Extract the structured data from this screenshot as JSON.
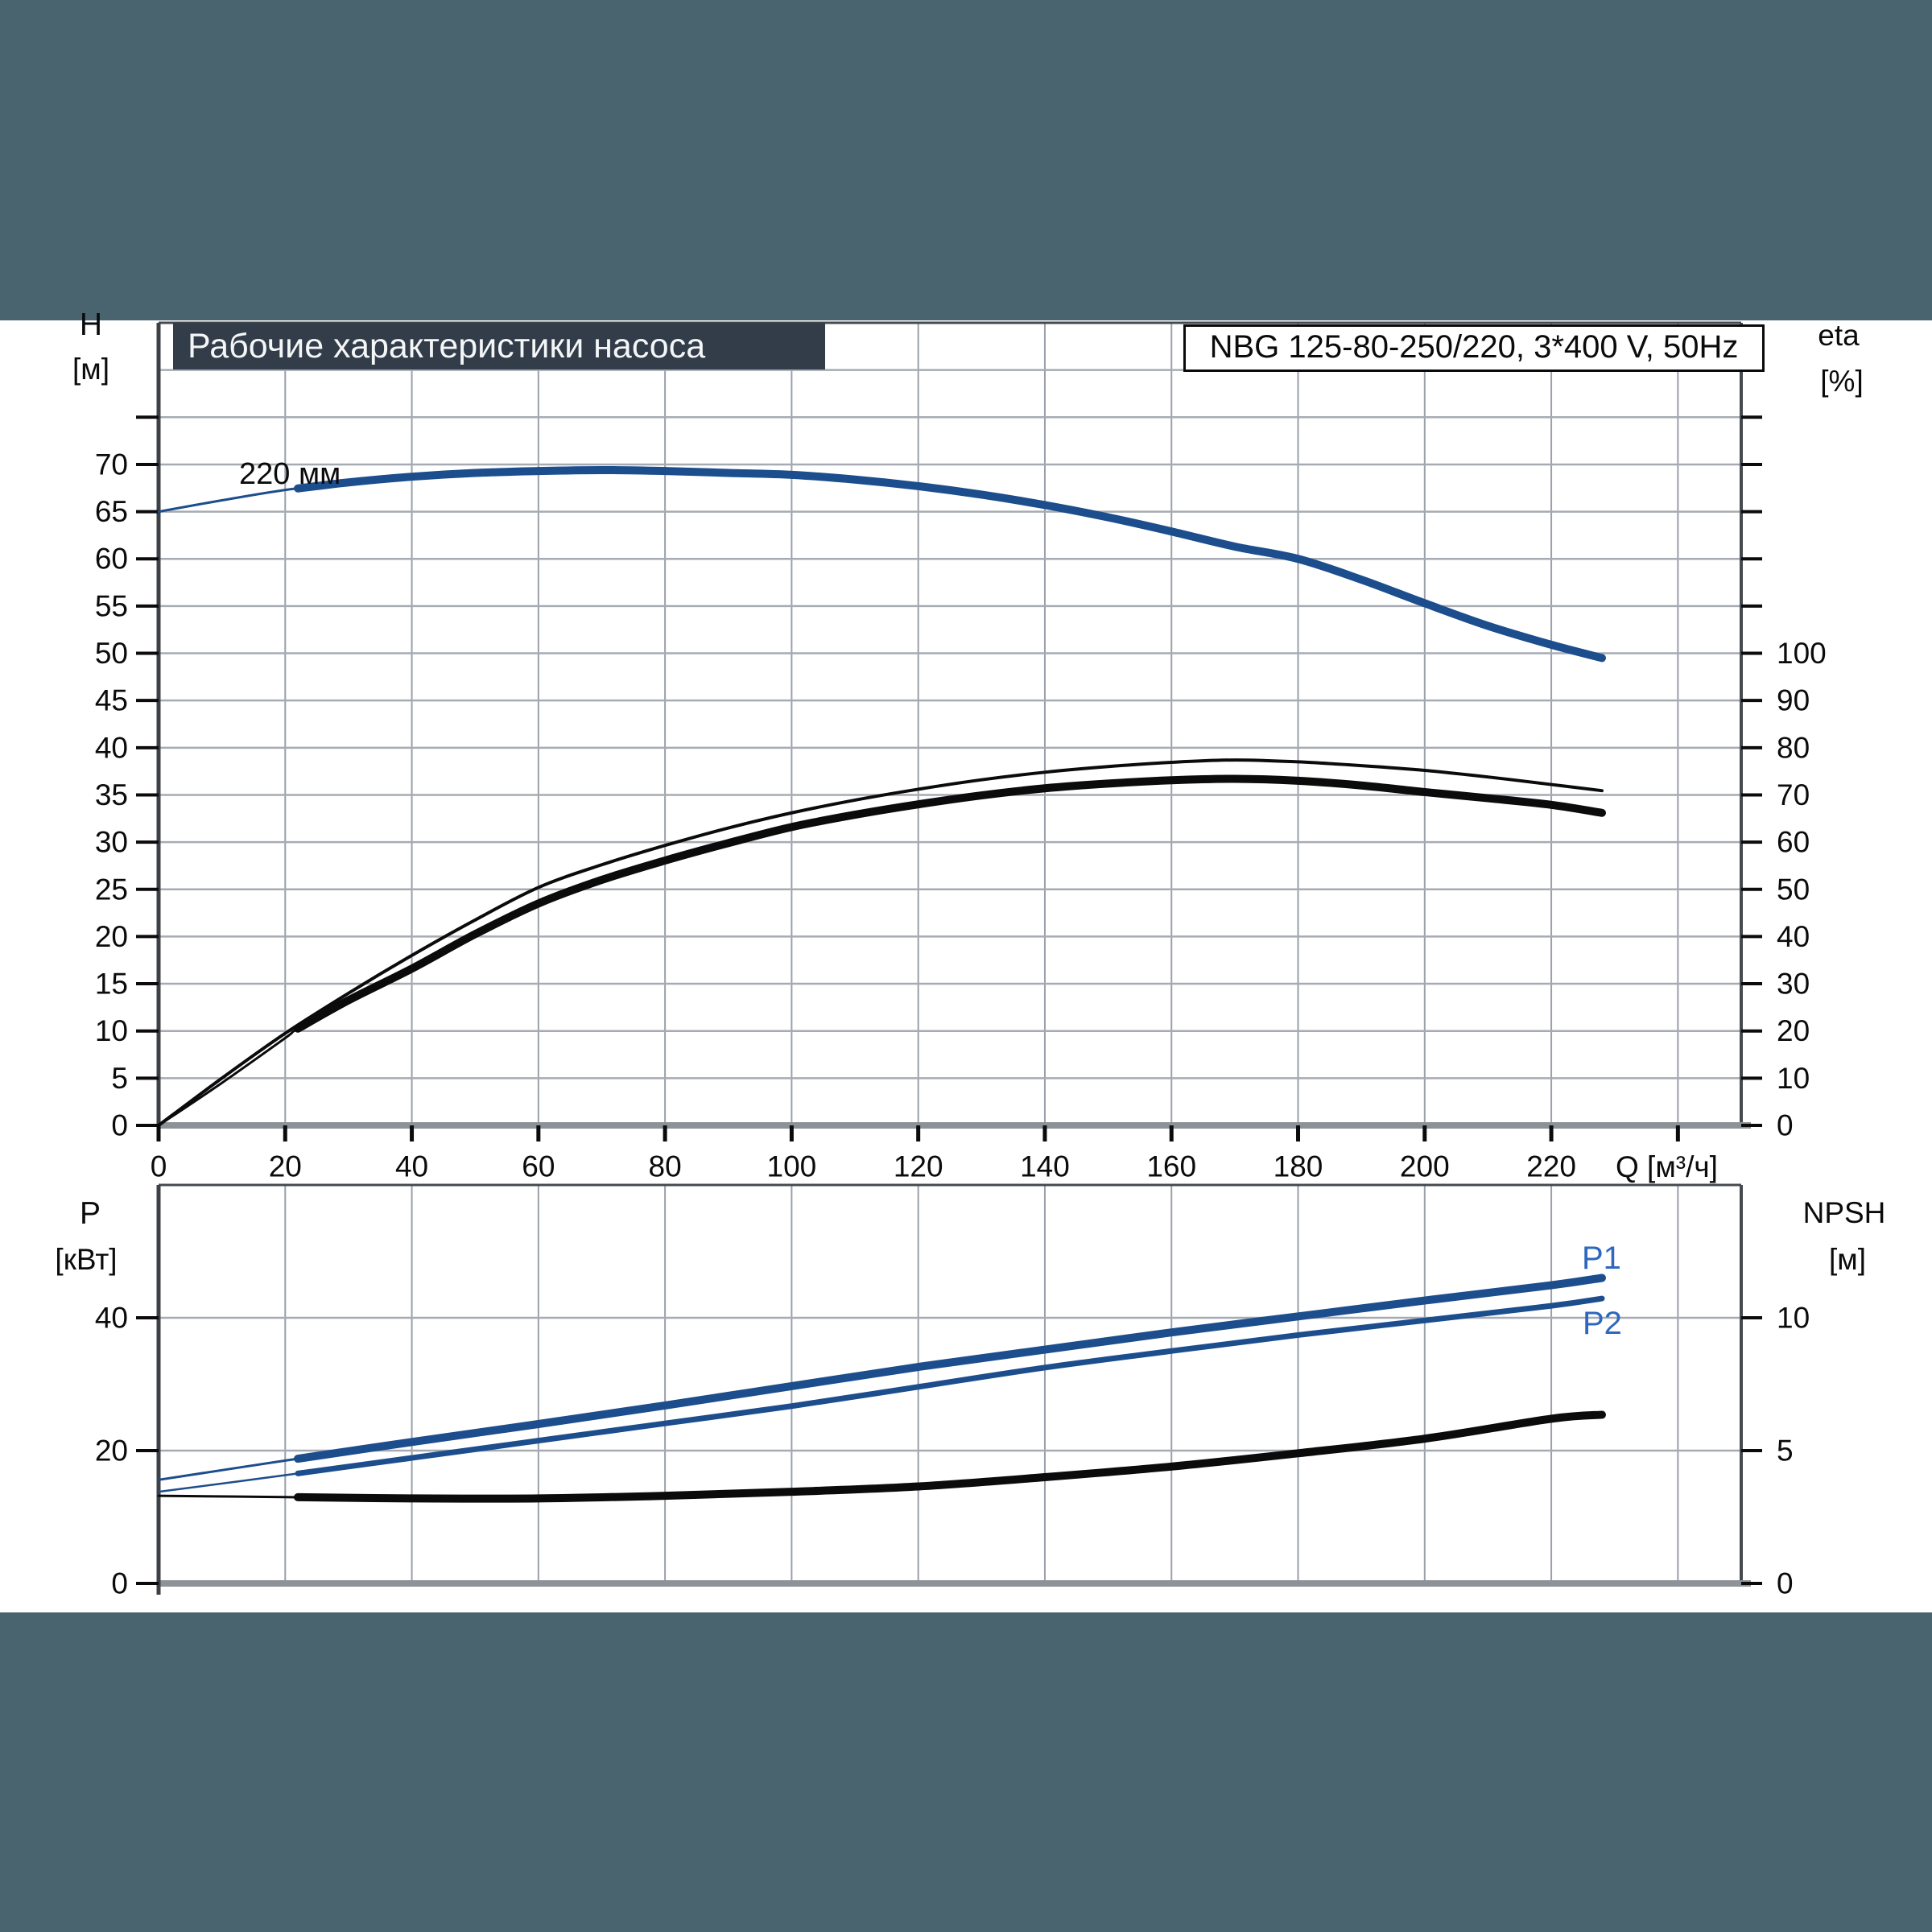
{
  "page": {
    "background": "#4a646f",
    "canvas": "#ffffff"
  },
  "header": {
    "title": "Рабочие характеристики насоса",
    "pump_model": "NBG 125-80-250/220, 3*400 V, 50Hz"
  },
  "colors": {
    "curve_blue": "#1c4d8c",
    "curve_black": "#0b0b0c",
    "label_blue": "#2e67bd",
    "grid": "#a6abb3",
    "grid_vertical": "#9aa0a9",
    "frame": "#46494e",
    "baseline": "#8d9298",
    "tick": "#0b0b0b"
  },
  "chart_data": [
    {
      "type": "line",
      "title": "Рабочие характеристики насоса",
      "box_label": "NBG 125-80-250/220, 3*400 V, 50Hz",
      "grid": true,
      "x_axis": {
        "label": "Q [м³/ч]",
        "min": 0,
        "max": 250,
        "grid_values": [
          20,
          40,
          60,
          80,
          100,
          120,
          140,
          160,
          180,
          200,
          220,
          240
        ],
        "tick_values": [
          0,
          20,
          40,
          60,
          80,
          100,
          120,
          140,
          160,
          180,
          200,
          220,
          240
        ],
        "label_values": [
          0,
          20,
          40,
          60,
          80,
          100,
          120,
          140,
          160,
          180,
          200,
          220
        ]
      },
      "y_left": {
        "name": "H",
        "unit": "[м]",
        "min": 0,
        "max": 85,
        "grid_values": [
          5,
          10,
          15,
          20,
          25,
          30,
          35,
          40,
          45,
          50,
          55,
          60,
          65,
          70,
          75,
          80
        ],
        "tick_values": [
          0,
          5,
          10,
          15,
          20,
          25,
          30,
          35,
          40,
          45,
          50,
          55,
          60,
          65,
          70,
          75
        ],
        "label_values": [
          0,
          5,
          10,
          15,
          20,
          25,
          30,
          35,
          40,
          45,
          50,
          55,
          60,
          65,
          70
        ]
      },
      "y_right": {
        "name": "eta",
        "unit": "[%]",
        "min": 0,
        "max": 170,
        "tick_values": [
          0,
          10,
          20,
          30,
          40,
          50,
          60,
          70,
          80,
          90,
          100,
          110,
          120,
          130,
          140,
          150
        ],
        "label_values": [
          0,
          10,
          20,
          30,
          40,
          50,
          60,
          70,
          80,
          90,
          100
        ]
      },
      "series": [
        {
          "name": "head-curve-220mm",
          "annotation": "220 мм",
          "axis": "left",
          "color": "#1c4d8c",
          "width": 10,
          "lead_width": 3,
          "min_flow": 22,
          "points": [
            [
              0,
              65.0
            ],
            [
              10,
              66.2
            ],
            [
              20,
              67.3
            ],
            [
              30,
              68.1
            ],
            [
              40,
              68.7
            ],
            [
              50,
              69.1
            ],
            [
              60,
              69.3
            ],
            [
              70,
              69.4
            ],
            [
              80,
              69.3
            ],
            [
              90,
              69.1
            ],
            [
              100,
              68.9
            ],
            [
              110,
              68.4
            ],
            [
              120,
              67.7
            ],
            [
              130,
              66.8
            ],
            [
              140,
              65.7
            ],
            [
              150,
              64.4
            ],
            [
              160,
              62.9
            ],
            [
              170,
              61.3
            ],
            [
              180,
              60.0
            ],
            [
              190,
              57.8
            ],
            [
              200,
              55.3
            ],
            [
              210,
              52.9
            ],
            [
              220,
              50.9
            ],
            [
              228,
              49.5
            ]
          ]
        },
        {
          "name": "efficiency-pump",
          "axis": "right",
          "color": "#0b0b0c",
          "width": 4,
          "lead_width": null,
          "min_flow": null,
          "points": [
            [
              0,
              0
            ],
            [
              10,
              10
            ],
            [
              20,
              19.5
            ],
            [
              30,
              28
            ],
            [
              40,
              36
            ],
            [
              50,
              43.5
            ],
            [
              60,
              50.4
            ],
            [
              70,
              55.2
            ],
            [
              80,
              59.3
            ],
            [
              90,
              63.0
            ],
            [
              100,
              66.2
            ],
            [
              110,
              68.9
            ],
            [
              120,
              71.2
            ],
            [
              130,
              73.2
            ],
            [
              140,
              74.8
            ],
            [
              150,
              76.0
            ],
            [
              160,
              76.9
            ],
            [
              170,
              77.4
            ],
            [
              180,
              77.0
            ],
            [
              190,
              76.2
            ],
            [
              200,
              75.2
            ],
            [
              210,
              73.8
            ],
            [
              220,
              72.2
            ],
            [
              228,
              70.9
            ]
          ]
        },
        {
          "name": "efficiency-total",
          "axis": "right",
          "color": "#0b0b0c",
          "width": 10,
          "lead_width": 3,
          "min_flow": 22,
          "points": [
            [
              0,
              0
            ],
            [
              10,
              9
            ],
            [
              20,
              18.5
            ],
            [
              22,
              20.5
            ],
            [
              30,
              26.5
            ],
            [
              40,
              33.2
            ],
            [
              50,
              40.5
            ],
            [
              60,
              47.0
            ],
            [
              70,
              52.0
            ],
            [
              80,
              56.1
            ],
            [
              90,
              59.8
            ],
            [
              100,
              63.2
            ],
            [
              110,
              65.8
            ],
            [
              120,
              68.0
            ],
            [
              130,
              69.9
            ],
            [
              140,
              71.4
            ],
            [
              150,
              72.4
            ],
            [
              160,
              73.1
            ],
            [
              170,
              73.4
            ],
            [
              180,
              73.0
            ],
            [
              190,
              72.0
            ],
            [
              200,
              70.6
            ],
            [
              210,
              69.3
            ],
            [
              220,
              67.9
            ],
            [
              228,
              66.2
            ]
          ]
        }
      ]
    },
    {
      "type": "line",
      "grid": true,
      "x_axis": {
        "label": "",
        "min": 0,
        "max": 250,
        "grid_values": [
          20,
          40,
          60,
          80,
          100,
          120,
          140,
          160,
          180,
          200,
          220,
          240
        ],
        "tick_values": [],
        "label_values": []
      },
      "y_left": {
        "name": "P",
        "unit": "[кВт]",
        "min": 0,
        "max": 60,
        "grid_values": [
          20,
          40
        ],
        "tick_values": [
          0,
          20,
          40
        ],
        "label_values": [
          0,
          20,
          40
        ]
      },
      "y_right": {
        "name": "NPSH",
        "unit": "[м]",
        "min": 0,
        "max": 15,
        "tick_values": [
          0,
          5,
          10
        ],
        "label_values": [
          0,
          5,
          10
        ]
      },
      "series": [
        {
          "name": "power-P1",
          "label": "P1",
          "axis": "left",
          "color": "#1c4d8c",
          "width": 10,
          "lead_width": 3,
          "min_flow": 22,
          "points": [
            [
              0,
              15.6
            ],
            [
              20,
              18.5
            ],
            [
              40,
              21.3
            ],
            [
              60,
              24.0
            ],
            [
              80,
              26.8
            ],
            [
              100,
              29.7
            ],
            [
              120,
              32.6
            ],
            [
              140,
              35.2
            ],
            [
              160,
              37.8
            ],
            [
              180,
              40.2
            ],
            [
              200,
              42.6
            ],
            [
              220,
              44.9
            ],
            [
              228,
              46.0
            ]
          ]
        },
        {
          "name": "power-P2",
          "label": "P2",
          "axis": "left",
          "color": "#1c4d8c",
          "width": 7,
          "lead_width": 2.5,
          "min_flow": 22,
          "points": [
            [
              0,
              13.8
            ],
            [
              20,
              16.3
            ],
            [
              40,
              18.9
            ],
            [
              60,
              21.5
            ],
            [
              80,
              24.1
            ],
            [
              100,
              26.7
            ],
            [
              120,
              29.6
            ],
            [
              140,
              32.5
            ],
            [
              160,
              35.0
            ],
            [
              180,
              37.4
            ],
            [
              200,
              39.6
            ],
            [
              220,
              41.8
            ],
            [
              228,
              42.9
            ]
          ]
        },
        {
          "name": "npsh-curve",
          "axis": "right",
          "color": "#0b0b0c",
          "width": 10,
          "lead_width": 3,
          "min_flow": 22,
          "points": [
            [
              0,
              3.3
            ],
            [
              20,
              3.25
            ],
            [
              40,
              3.2
            ],
            [
              60,
              3.2
            ],
            [
              80,
              3.3
            ],
            [
              100,
              3.45
            ],
            [
              120,
              3.65
            ],
            [
              140,
              4.0
            ],
            [
              160,
              4.4
            ],
            [
              180,
              4.9
            ],
            [
              200,
              5.45
            ],
            [
              220,
              6.2
            ],
            [
              228,
              6.35
            ]
          ]
        }
      ]
    }
  ]
}
